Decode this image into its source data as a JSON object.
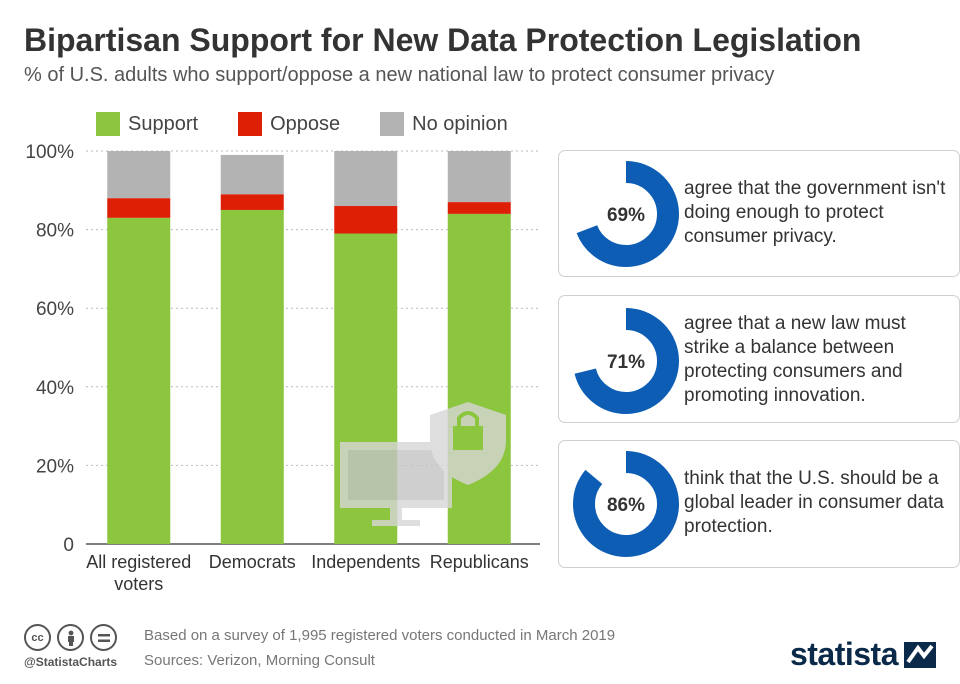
{
  "header": {
    "title": "Bipartisan Support for New Data Protection Legislation",
    "subtitle": "% of U.S. adults who support/oppose a new national law to protect consumer privacy"
  },
  "colors": {
    "support": "#8cc63f",
    "oppose": "#dd1f05",
    "no_opinion": "#b3b3b3",
    "accent": "#0c5db3"
  },
  "chart_data": {
    "type": "bar",
    "stacked": true,
    "categories": [
      "All registered voters",
      "Democrats",
      "Independents",
      "Republicans"
    ],
    "series": [
      {
        "name": "Support",
        "values": [
          83,
          85,
          79,
          84
        ]
      },
      {
        "name": "Oppose",
        "values": [
          5,
          4,
          7,
          3
        ]
      },
      {
        "name": "No opinion",
        "values": [
          12,
          10,
          14,
          13
        ]
      }
    ],
    "ylim": [
      0,
      100
    ],
    "yticks": [
      "0",
      "20%",
      "40%",
      "60%",
      "80%",
      "100%"
    ],
    "grid": true,
    "legend": "top"
  },
  "stats": [
    {
      "value": 69,
      "label": "69%",
      "text": "agree that the government isn't doing enough to protect consumer privacy."
    },
    {
      "value": 71,
      "label": "71%",
      "text": "agree that a new law must strike a balance between protecting consumers and promoting innovation."
    },
    {
      "value": 86,
      "label": "86%",
      "text": "think that the U.S. should be a global leader in consumer data protection."
    }
  ],
  "footer": {
    "handle": "@StatistaCharts",
    "note": "Based on a survey of 1,995 registered voters conducted in March 2019",
    "sources": "Sources: Verizon, Morning Consult",
    "brand": "statista",
    "license_icons": [
      "cc-icon",
      "attribution-icon",
      "no-derivatives-icon"
    ]
  }
}
